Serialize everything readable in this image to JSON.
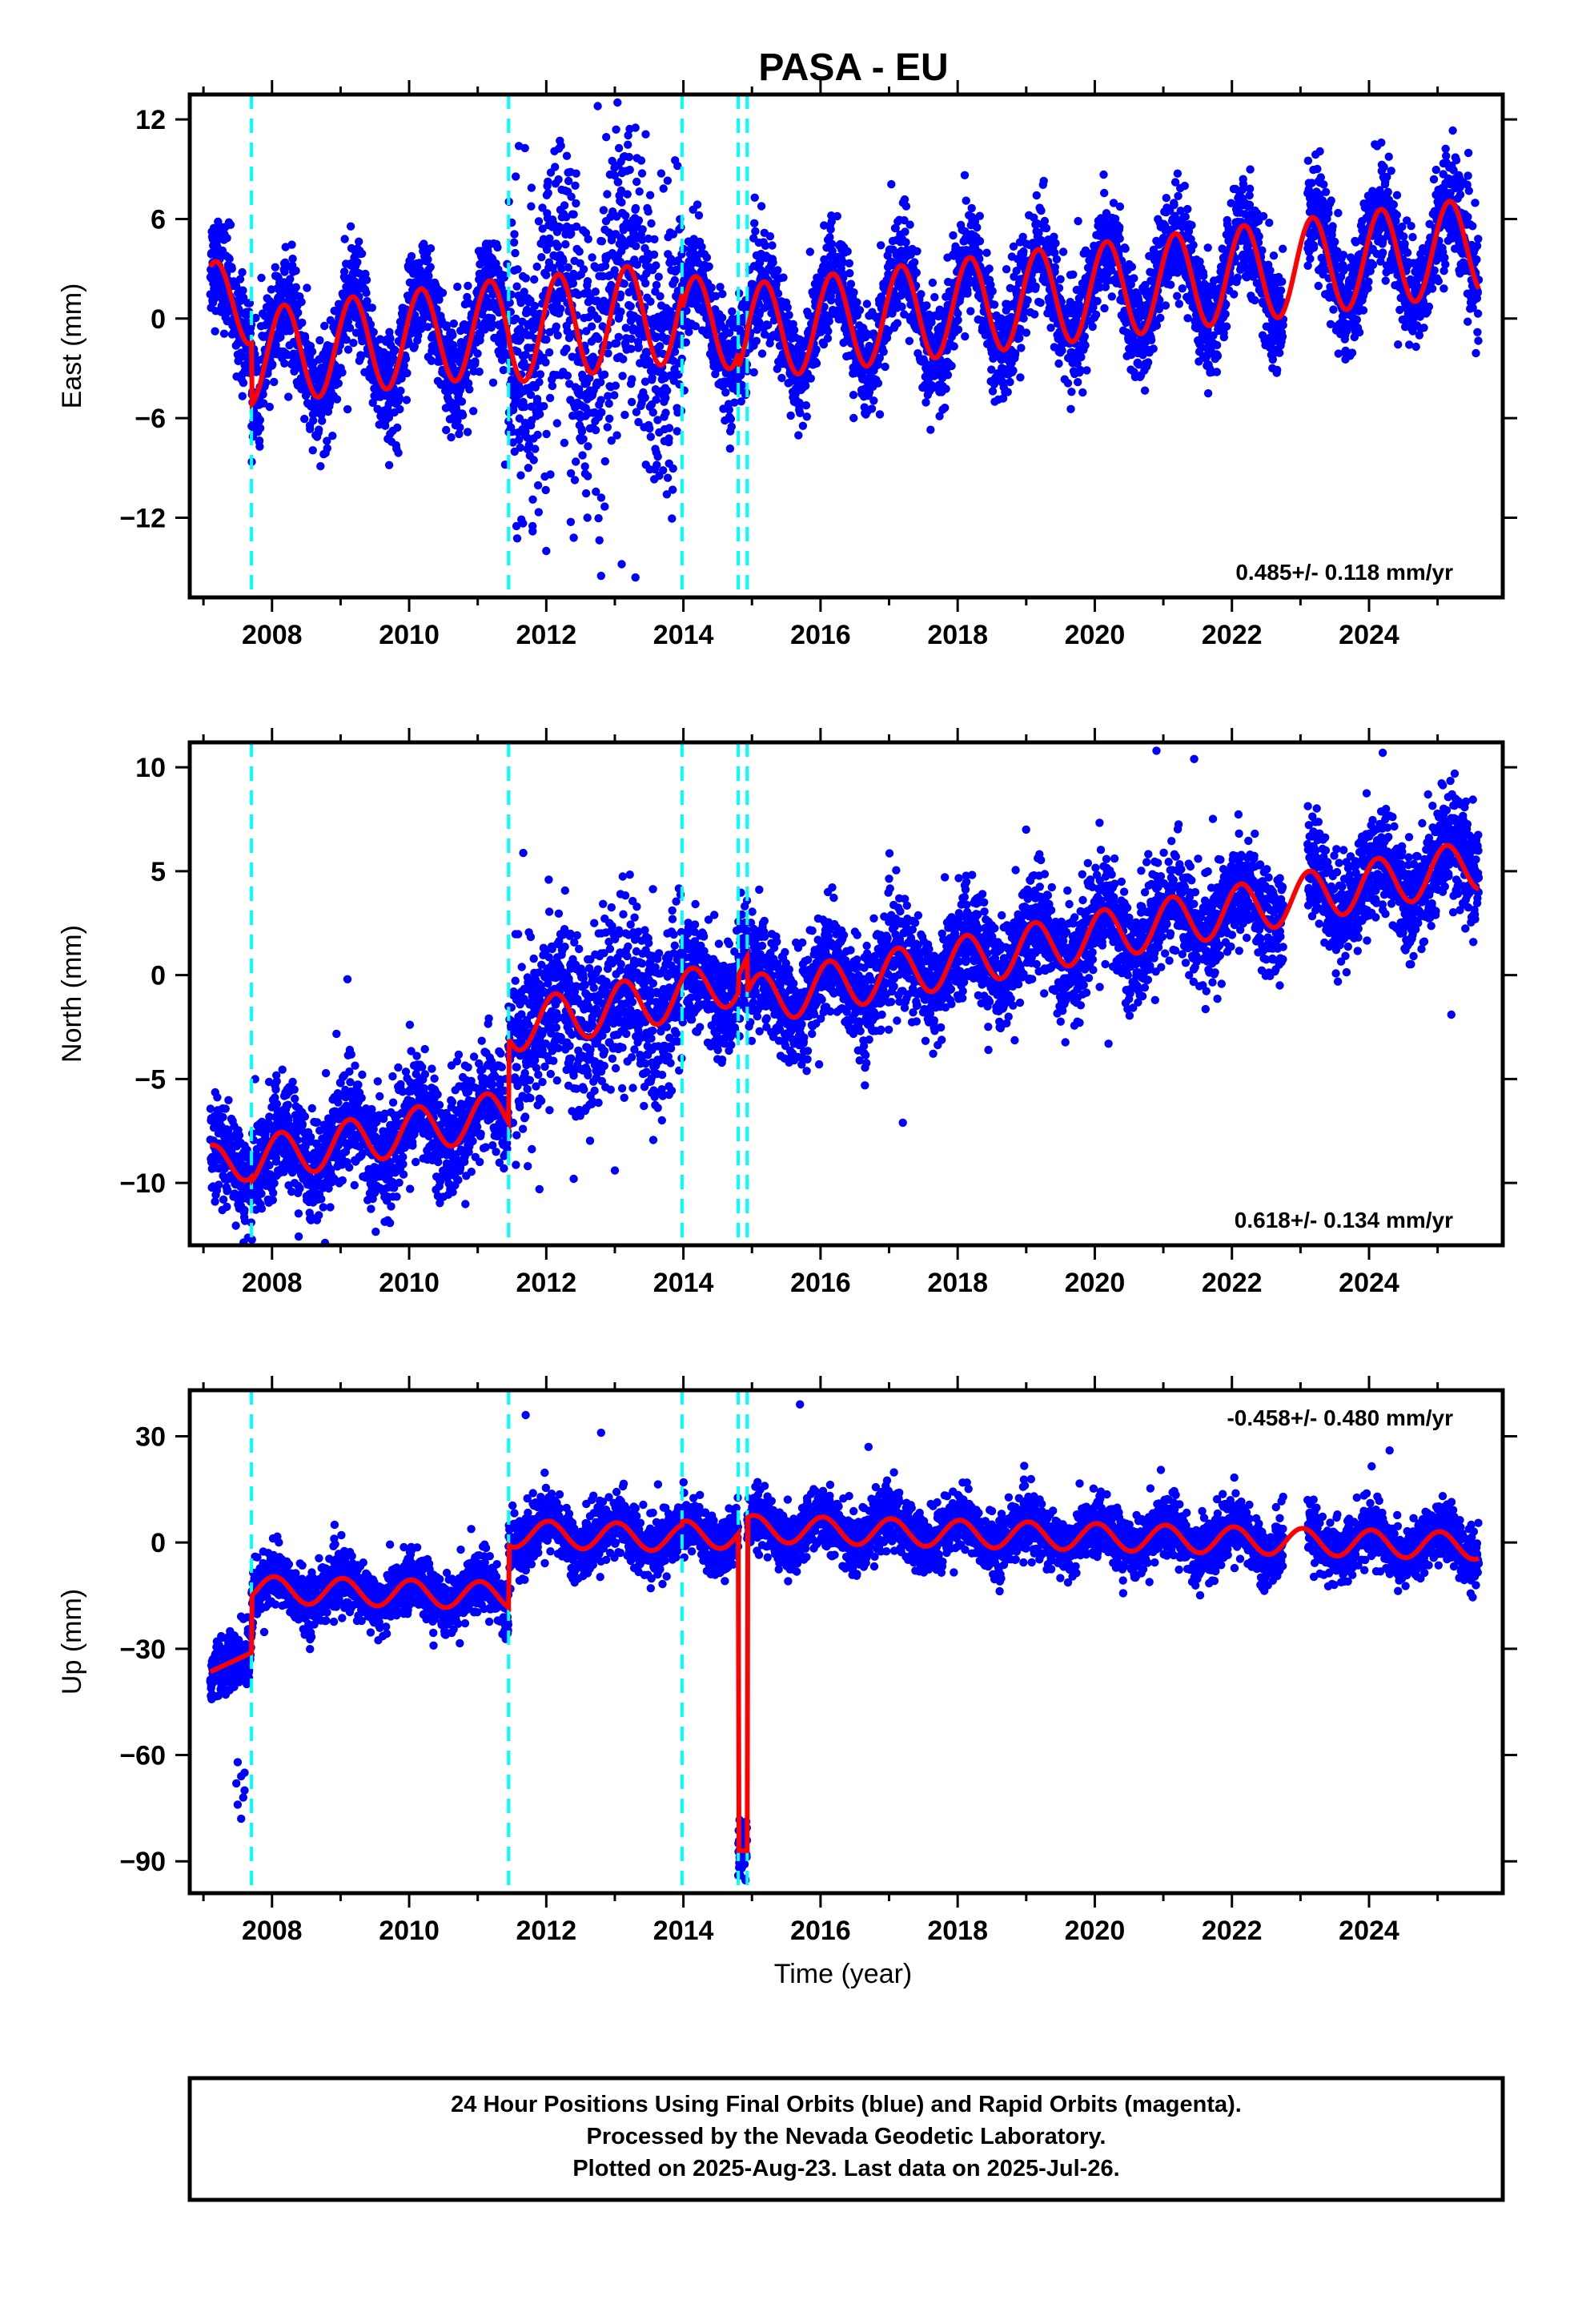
{
  "title": "PASA - EU",
  "footer": {
    "lines": [
      "24 Hour Positions Using Final Orbits (blue) and Rapid Orbits (magenta).",
      "Processed by the Nevada Geodetic Laboratory.",
      "Plotted on 2025-Aug-23. Last data on 2025-Jul-26."
    ]
  },
  "colors": {
    "points": "#0000ff",
    "model": "#ff0000",
    "events": "#00ffff",
    "frame": "#000000"
  },
  "chart_data": [
    {
      "type": "scatter",
      "panel": "East",
      "ylabel": "East (mm)",
      "xlabel": "",
      "xlim": [
        2006.8,
        2025.95
      ],
      "ylim": [
        -16.8,
        13.5
      ],
      "xticks": [
        2008,
        2010,
        2012,
        2014,
        2016,
        2018,
        2020,
        2022,
        2024
      ],
      "yticks": [
        -12,
        -6,
        0,
        6,
        12
      ],
      "ytick_labels": [
        "−12",
        "−6",
        "0",
        "6",
        "12"
      ],
      "rate_label": "0.485+/- 0.118 mm/yr",
      "rate_position": "bottom-right",
      "events": [
        2007.7,
        2011.45,
        2013.98,
        2014.8,
        2014.93
      ],
      "gaps": [
        [
          2022.75,
          2023.1
        ]
      ],
      "model": {
        "t0": 2007.1,
        "segments": [
          {
            "start": 2007.1,
            "end": 2007.7,
            "offset": 0.8,
            "slope": 0.485,
            "amp": 2.6
          },
          {
            "start": 2007.7,
            "end": 2011.45,
            "offset": -2.6,
            "slope": 0.485,
            "amp": 2.9
          },
          {
            "start": 2011.45,
            "end": 2013.98,
            "offset": -2.9,
            "slope": 0.485,
            "amp": 3.1
          },
          {
            "start": 2013.98,
            "end": 2014.8,
            "offset": -3.8,
            "slope": 0.485,
            "amp": 2.9
          },
          {
            "start": 2014.8,
            "end": 2014.93,
            "offset": -4.9,
            "slope": 0.485,
            "amp": 2.6
          },
          {
            "start": 2014.93,
            "end": 2025.6,
            "offset": -4.6,
            "slope": 0.485,
            "amp": 2.9
          }
        ],
        "phase": 1.1
      },
      "scatter_noise": 1.6,
      "noise_windows": [
        {
          "start": 2011.45,
          "end": 2013.98,
          "sigma": 4.2
        }
      ],
      "outliers": [
        [
          2011.6,
          10.4
        ],
        [
          2011.8,
          -12.5
        ],
        [
          2012.0,
          -14.0
        ],
        [
          2012.3,
          9.8
        ],
        [
          2012.4,
          -13.2
        ],
        [
          2012.75,
          12.8
        ],
        [
          2012.8,
          -15.5
        ],
        [
          2013.1,
          -14.8
        ],
        [
          2013.3,
          11.5
        ],
        [
          2013.45,
          11.1
        ],
        [
          2011.4,
          -8.8
        ],
        [
          2013.3,
          -15.6
        ],
        [
          2012.6,
          -12.0
        ]
      ]
    },
    {
      "type": "scatter",
      "panel": "North",
      "ylabel": "North (mm)",
      "xlabel": "",
      "xlim": [
        2006.8,
        2025.95
      ],
      "ylim": [
        -13.0,
        11.2
      ],
      "xticks": [
        2008,
        2010,
        2012,
        2014,
        2016,
        2018,
        2020,
        2022,
        2024
      ],
      "yticks": [
        -10,
        -5,
        0,
        5,
        10
      ],
      "ytick_labels": [
        "−10",
        "−5",
        "0",
        "5",
        "10"
      ],
      "rate_label": "0.618+/- 0.134 mm/yr",
      "rate_position": "bottom-right",
      "events": [
        2007.7,
        2011.45,
        2013.98,
        2014.8,
        2014.93
      ],
      "gaps": [
        [
          2022.75,
          2023.1
        ]
      ],
      "model": {
        "t0": 2007.1,
        "segments": [
          {
            "start": 2007.1,
            "end": 2007.7,
            "offset": -9.2,
            "slope": 0.618,
            "amp": 1.0
          },
          {
            "start": 2007.7,
            "end": 2011.45,
            "offset": -9.3,
            "slope": 0.618,
            "amp": 1.1
          },
          {
            "start": 2011.45,
            "end": 2013.98,
            "offset": -5.2,
            "slope": 0.618,
            "amp": 1.2
          },
          {
            "start": 2013.98,
            "end": 2014.8,
            "offset": -5.1,
            "slope": 0.618,
            "amp": 1.1
          },
          {
            "start": 2014.8,
            "end": 2014.93,
            "offset": -4.3,
            "slope": 0.618,
            "amp": 1.0
          },
          {
            "start": 2014.93,
            "end": 2025.6,
            "offset": -6.1,
            "slope": 0.618,
            "amp": 1.2
          }
        ],
        "phase": 1.4
      },
      "scatter_noise": 1.3,
      "noise_windows": [
        {
          "start": 2011.45,
          "end": 2013.98,
          "sigma": 2.2
        }
      ],
      "outliers": [
        [
          2009.1,
          -0.2
        ],
        [
          2017.2,
          -7.1
        ],
        [
          2020.2,
          -3.3
        ],
        [
          2020.9,
          10.8
        ],
        [
          2021.45,
          10.4
        ],
        [
          2024.2,
          10.7
        ],
        [
          2025.2,
          -1.9
        ],
        [
          2011.9,
          -10.3
        ],
        [
          2012.4,
          -9.8
        ],
        [
          2013.0,
          -9.4
        ]
      ]
    },
    {
      "type": "scatter",
      "panel": "Up",
      "ylabel": "Up (mm)",
      "xlabel": "Time (year)",
      "xlim": [
        2006.8,
        2025.95
      ],
      "ylim": [
        -99,
        43
      ],
      "xticks": [
        2008,
        2010,
        2012,
        2014,
        2016,
        2018,
        2020,
        2022,
        2024
      ],
      "yticks": [
        -90,
        -60,
        -30,
        0,
        30
      ],
      "ytick_labels": [
        "−90",
        "−60",
        "−30",
        "0",
        "30"
      ],
      "rate_label": "-0.458+/- 0.480 mm/yr",
      "rate_position": "top-right",
      "events": [
        2007.7,
        2011.45,
        2013.98,
        2014.8,
        2014.93
      ],
      "gaps": [
        [
          2022.75,
          2023.1
        ]
      ],
      "model": {
        "t0": 2007.1,
        "segments": [
          {
            "start": 2007.1,
            "end": 2007.7,
            "offset": -36.5,
            "slope": 9.0,
            "amp": 0
          },
          {
            "start": 2007.7,
            "end": 2011.45,
            "offset": -13.0,
            "slope": -0.458,
            "amp": 3.8
          },
          {
            "start": 2011.45,
            "end": 2013.98,
            "offset": 4.5,
            "slope": -0.458,
            "amp": 3.8
          },
          {
            "start": 2013.98,
            "end": 2014.8,
            "offset": 5.5,
            "slope": -0.458,
            "amp": 3.8
          },
          {
            "start": 2014.8,
            "end": 2014.93,
            "offset": -87.0,
            "slope": 0,
            "amp": 0
          },
          {
            "start": 2014.93,
            "end": 2025.6,
            "offset": 7.5,
            "slope": -0.458,
            "amp": 3.8
          }
        ],
        "phase": 2.0
      },
      "scatter_noise": 4.2,
      "noise_windows": [],
      "outliers": [
        [
          2007.5,
          -62
        ],
        [
          2007.55,
          -66
        ],
        [
          2007.6,
          -70
        ],
        [
          2007.5,
          -74
        ],
        [
          2007.55,
          -78
        ],
        [
          2007.6,
          -65
        ],
        [
          2007.48,
          -68
        ],
        [
          2007.58,
          -72
        ],
        [
          2011.7,
          36
        ],
        [
          2015.7,
          39
        ],
        [
          2012.8,
          31
        ],
        [
          2016.7,
          27
        ],
        [
          2024.3,
          26
        ],
        [
          2014.8,
          -94
        ],
        [
          2014.85,
          -92
        ],
        [
          2014.9,
          -95
        ],
        [
          2014.82,
          -89
        ]
      ]
    }
  ]
}
